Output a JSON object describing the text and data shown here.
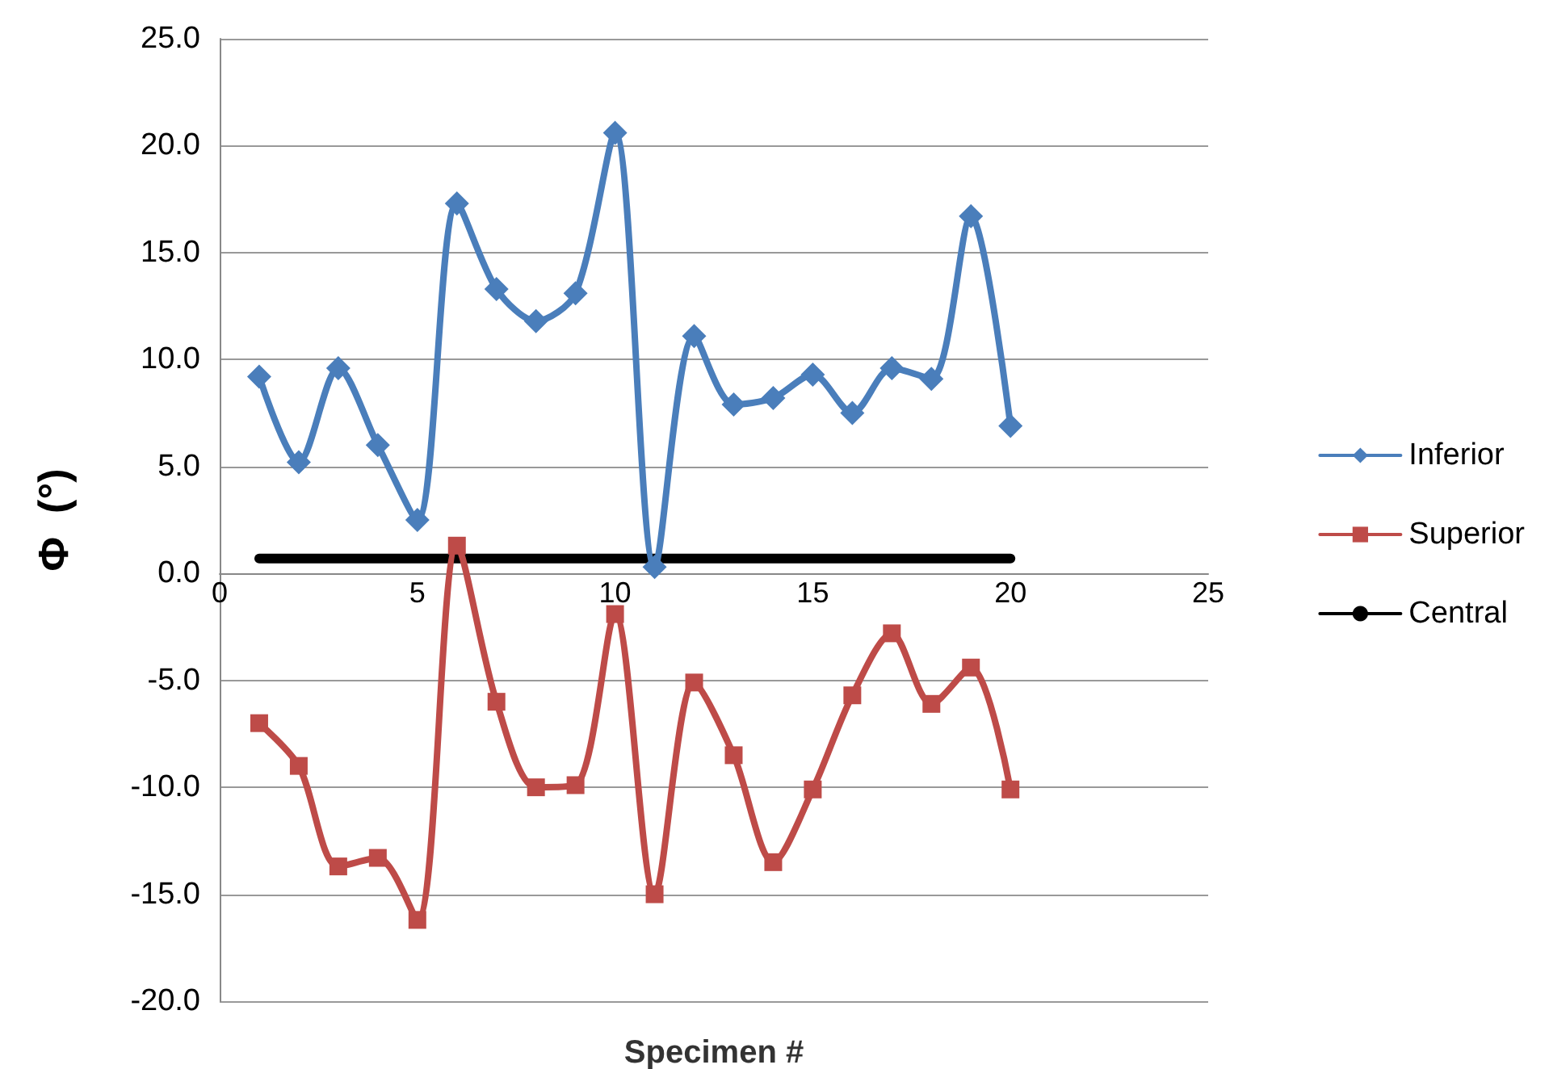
{
  "chart_data": {
    "type": "line",
    "xlabel": "Specimen #",
    "ylabel": "Φ  (°)",
    "x": [
      1,
      2,
      3,
      4,
      5,
      6,
      7,
      8,
      9,
      10,
      11,
      12,
      13,
      14,
      15,
      16,
      17,
      18,
      19,
      20
    ],
    "series": [
      {
        "name": "Inferior",
        "color": "#4a7ebb",
        "marker": "diamond",
        "values": [
          9.2,
          5.2,
          9.6,
          6.0,
          2.5,
          17.3,
          13.3,
          11.8,
          13.1,
          20.6,
          0.3,
          11.1,
          7.9,
          8.2,
          9.3,
          7.5,
          9.6,
          9.1,
          16.7,
          6.9
        ]
      },
      {
        "name": "Superior",
        "color": "#be4b48",
        "marker": "square",
        "values": [
          -7.0,
          -9.0,
          -13.7,
          -13.3,
          -16.2,
          1.3,
          -6.0,
          -10.0,
          -9.9,
          -1.9,
          -15.0,
          -5.1,
          -8.5,
          -13.5,
          -10.1,
          -5.7,
          -2.8,
          -6.1,
          -4.4,
          -10.1
        ]
      },
      {
        "name": "Central",
        "color": "#000000",
        "marker": "none",
        "values": [
          0.7,
          0.7,
          0.7,
          0.7,
          0.7,
          0.7,
          0.7,
          0.7,
          0.7,
          0.7,
          0.7,
          0.7,
          0.7,
          0.7,
          0.7,
          0.7,
          0.7,
          0.7,
          0.7,
          0.7
        ]
      }
    ],
    "xlim": [
      0,
      25
    ],
    "xticks": [
      0,
      5,
      10,
      15,
      20,
      25
    ],
    "ylim": [
      -20,
      25
    ],
    "yticks": [
      {
        "value": -20,
        "label": "-20.0"
      },
      {
        "value": -15,
        "label": "-15.0"
      },
      {
        "value": -10,
        "label": "-10.0"
      },
      {
        "value": -5,
        "label": "-5.0"
      },
      {
        "value": 0,
        "label": "0.0"
      },
      {
        "value": 5,
        "label": "5.0"
      },
      {
        "value": 10,
        "label": "10.0"
      },
      {
        "value": 15,
        "label": "15.0"
      },
      {
        "value": 20,
        "label": "20.0"
      },
      {
        "value": 25,
        "label": "25.0"
      }
    ],
    "grid": "y",
    "legend": "right"
  }
}
